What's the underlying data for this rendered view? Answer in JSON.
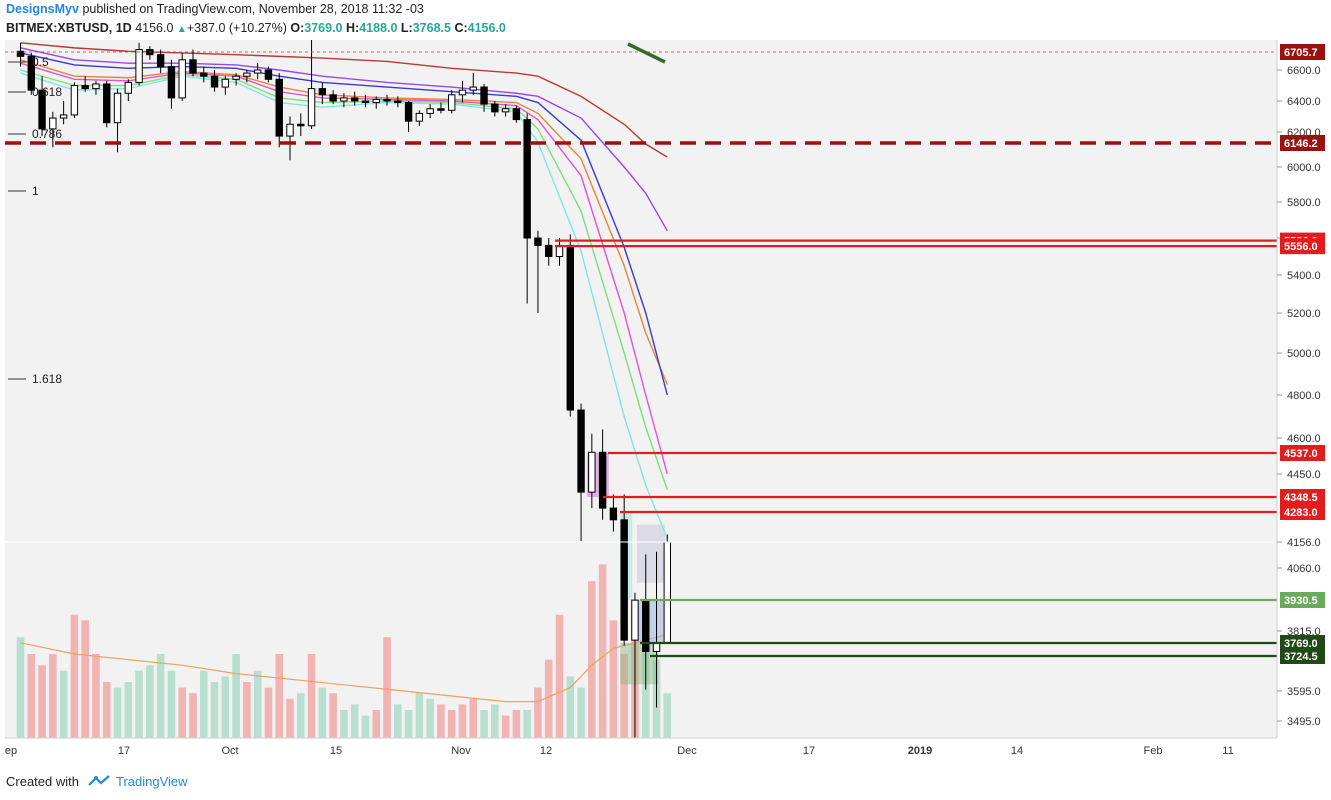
{
  "header": {
    "author": "DesignsMyv",
    "published": "published on TradingView.com, November 28, 2018 11:32 -03",
    "symbol": "BITMEX:XBTUSD, 1D",
    "last": "4156.0",
    "change_arrow": "▲",
    "change": "+387.0 (+10.27%)",
    "open_label": "O:",
    "open": "3769.0",
    "high_label": "H:",
    "high": "4188.0",
    "low_label": "L:",
    "low": "3768.5",
    "close_label": "C:",
    "close": "4156.0"
  },
  "footer": {
    "created_with": "Created with",
    "brand": "TradingView",
    "logo_icon": "tradingview-logo-icon"
  },
  "colors": {
    "bull_candle": "#ffffff",
    "bear_candle": "#000000",
    "vol_up": "#b8dfcf",
    "vol_down": "#f2b3b3",
    "resistance": "#e11d1d",
    "support_light": "#6aaa5b",
    "support_dark": "#1f4a16",
    "dashed_level": "#9b1111",
    "plot_bg": "#f2f2f2"
  },
  "chart_data": {
    "type": "candlestick",
    "title": "",
    "xlabel": "",
    "ylabel": "",
    "ylim": [
      3430,
      6740
    ],
    "grid": false,
    "y_ticks": [
      "6600.0",
      "6400.0",
      "6200.0",
      "6000.0",
      "5800.0",
      "5600.0",
      "5400.0",
      "5200.0",
      "5000.0",
      "4800.0",
      "4600.0",
      "4450.0",
      "4060.0",
      "3815.0",
      "3595.0",
      "3495.0"
    ],
    "x_ticks": [
      "ep",
      "17",
      "Oct",
      "15",
      "Nov",
      "12",
      "Dec",
      "17",
      "2019",
      "14",
      "Feb",
      "11"
    ],
    "price_tags": [
      {
        "value": "6705.7",
        "color": "#9b1111"
      },
      {
        "value": "6146.2",
        "color": "#9b1111"
      },
      {
        "value": "5586.0",
        "color": "#e11d1d"
      },
      {
        "value": "5556.0",
        "color": "#e11d1d"
      },
      {
        "value": "4537.0",
        "color": "#e11d1d"
      },
      {
        "value": "4348.5",
        "color": "#e11d1d"
      },
      {
        "value": "4283.0",
        "color": "#e11d1d"
      },
      {
        "value": "3930.5",
        "color": "#6aaa5b"
      },
      {
        "value": "3769.0",
        "color": "#1f4a16"
      },
      {
        "value": "3724.5",
        "color": "#1f4a16"
      }
    ],
    "last_price": "4156.0",
    "fib_labels": [
      "0.5",
      "0.618",
      "0.786",
      "1",
      "1.618"
    ],
    "horizontal_levels": [
      6705.7,
      6146.2,
      5586.0,
      5556.0,
      4537.0,
      4348.5,
      4283.0,
      3930.5,
      3769.0,
      3724.5
    ],
    "candles": [
      {
        "o": 6710,
        "h": 6760,
        "l": 6620,
        "c": 6680
      },
      {
        "o": 6680,
        "h": 6700,
        "l": 6440,
        "c": 6470
      },
      {
        "o": 6470,
        "h": 6560,
        "l": 6180,
        "c": 6220
      },
      {
        "o": 6220,
        "h": 6330,
        "l": 6120,
        "c": 6290
      },
      {
        "o": 6290,
        "h": 6400,
        "l": 6250,
        "c": 6310
      },
      {
        "o": 6310,
        "h": 6520,
        "l": 6290,
        "c": 6500
      },
      {
        "o": 6500,
        "h": 6560,
        "l": 6460,
        "c": 6480
      },
      {
        "o": 6480,
        "h": 6530,
        "l": 6440,
        "c": 6510
      },
      {
        "o": 6510,
        "h": 6530,
        "l": 6230,
        "c": 6260
      },
      {
        "o": 6260,
        "h": 6480,
        "l": 6090,
        "c": 6450
      },
      {
        "o": 6450,
        "h": 6540,
        "l": 6400,
        "c": 6520
      },
      {
        "o": 6520,
        "h": 6760,
        "l": 6500,
        "c": 6720
      },
      {
        "o": 6720,
        "h": 6740,
        "l": 6660,
        "c": 6690
      },
      {
        "o": 6690,
        "h": 6720,
        "l": 6580,
        "c": 6620
      },
      {
        "o": 6620,
        "h": 6660,
        "l": 6350,
        "c": 6420
      },
      {
        "o": 6420,
        "h": 6700,
        "l": 6400,
        "c": 6660
      },
      {
        "o": 6660,
        "h": 6720,
        "l": 6560,
        "c": 6580
      },
      {
        "o": 6580,
        "h": 6620,
        "l": 6520,
        "c": 6560
      },
      {
        "o": 6560,
        "h": 6600,
        "l": 6460,
        "c": 6490
      },
      {
        "o": 6490,
        "h": 6560,
        "l": 6440,
        "c": 6540
      },
      {
        "o": 6540,
        "h": 6580,
        "l": 6500,
        "c": 6560
      },
      {
        "o": 6560,
        "h": 6600,
        "l": 6520,
        "c": 6580
      },
      {
        "o": 6580,
        "h": 6640,
        "l": 6540,
        "c": 6600
      },
      {
        "o": 6600,
        "h": 6620,
        "l": 6520,
        "c": 6540
      },
      {
        "o": 6540,
        "h": 6580,
        "l": 6120,
        "c": 6180
      },
      {
        "o": 6180,
        "h": 6300,
        "l": 6040,
        "c": 6250
      },
      {
        "o": 6250,
        "h": 6320,
        "l": 6180,
        "c": 6240
      },
      {
        "o": 6240,
        "h": 6780,
        "l": 6220,
        "c": 6480
      },
      {
        "o": 6480,
        "h": 6520,
        "l": 6380,
        "c": 6440
      },
      {
        "o": 6440,
        "h": 6470,
        "l": 6380,
        "c": 6400
      },
      {
        "o": 6400,
        "h": 6450,
        "l": 6360,
        "c": 6420
      },
      {
        "o": 6420,
        "h": 6460,
        "l": 6370,
        "c": 6400
      },
      {
        "o": 6400,
        "h": 6440,
        "l": 6360,
        "c": 6390
      },
      {
        "o": 6390,
        "h": 6430,
        "l": 6350,
        "c": 6410
      },
      {
        "o": 6410,
        "h": 6440,
        "l": 6370,
        "c": 6400
      },
      {
        "o": 6400,
        "h": 6430,
        "l": 6360,
        "c": 6390
      },
      {
        "o": 6390,
        "h": 6400,
        "l": 6200,
        "c": 6270
      },
      {
        "o": 6270,
        "h": 6340,
        "l": 6240,
        "c": 6320
      },
      {
        "o": 6320,
        "h": 6380,
        "l": 6290,
        "c": 6350
      },
      {
        "o": 6350,
        "h": 6390,
        "l": 6320,
        "c": 6340
      },
      {
        "o": 6340,
        "h": 6470,
        "l": 6320,
        "c": 6440
      },
      {
        "o": 6440,
        "h": 6530,
        "l": 6390,
        "c": 6470
      },
      {
        "o": 6470,
        "h": 6580,
        "l": 6440,
        "c": 6490
      },
      {
        "o": 6490,
        "h": 6510,
        "l": 6330,
        "c": 6380
      },
      {
        "o": 6380,
        "h": 6400,
        "l": 6300,
        "c": 6330
      },
      {
        "o": 6330,
        "h": 6380,
        "l": 6300,
        "c": 6350
      },
      {
        "o": 6350,
        "h": 6370,
        "l": 6260,
        "c": 6280
      },
      {
        "o": 6280,
        "h": 6320,
        "l": 5250,
        "c": 5600
      },
      {
        "o": 5600,
        "h": 5640,
        "l": 5200,
        "c": 5560
      },
      {
        "o": 5560,
        "h": 5600,
        "l": 5450,
        "c": 5500
      },
      {
        "o": 5500,
        "h": 5600,
        "l": 5450,
        "c": 5560
      },
      {
        "o": 5560,
        "h": 5620,
        "l": 4700,
        "c": 4730
      },
      {
        "o": 4730,
        "h": 4760,
        "l": 4160,
        "c": 4370
      },
      {
        "o": 4370,
        "h": 4620,
        "l": 4300,
        "c": 4540
      },
      {
        "o": 4540,
        "h": 4640,
        "l": 4250,
        "c": 4300
      },
      {
        "o": 4300,
        "h": 4360,
        "l": 4200,
        "c": 4250
      },
      {
        "o": 4250,
        "h": 4360,
        "l": 3760,
        "c": 3780
      },
      {
        "o": 3780,
        "h": 3960,
        "l": 3420,
        "c": 3930
      },
      {
        "o": 3930,
        "h": 4110,
        "l": 3600,
        "c": 3740
      },
      {
        "o": 3740,
        "h": 4120,
        "l": 3540,
        "c": 3769
      },
      {
        "o": 3769,
        "h": 4188,
        "l": 3768.5,
        "c": 4156
      }
    ],
    "volume": [
      {
        "v": 0.36,
        "up": true
      },
      {
        "v": 0.3,
        "up": false
      },
      {
        "v": 0.26,
        "up": false
      },
      {
        "v": 0.3,
        "up": false
      },
      {
        "v": 0.24,
        "up": true
      },
      {
        "v": 0.44,
        "up": false
      },
      {
        "v": 0.42,
        "up": false
      },
      {
        "v": 0.3,
        "up": false
      },
      {
        "v": 0.2,
        "up": false
      },
      {
        "v": 0.18,
        "up": true
      },
      {
        "v": 0.2,
        "up": true
      },
      {
        "v": 0.24,
        "up": true
      },
      {
        "v": 0.26,
        "up": true
      },
      {
        "v": 0.3,
        "up": true
      },
      {
        "v": 0.24,
        "up": true
      },
      {
        "v": 0.18,
        "up": false
      },
      {
        "v": 0.16,
        "up": false
      },
      {
        "v": 0.24,
        "up": true
      },
      {
        "v": 0.2,
        "up": true
      },
      {
        "v": 0.22,
        "up": true
      },
      {
        "v": 0.3,
        "up": true
      },
      {
        "v": 0.2,
        "up": false
      },
      {
        "v": 0.24,
        "up": true
      },
      {
        "v": 0.18,
        "up": false
      },
      {
        "v": 0.3,
        "up": false
      },
      {
        "v": 0.14,
        "up": false
      },
      {
        "v": 0.16,
        "up": true
      },
      {
        "v": 0.3,
        "up": false
      },
      {
        "v": 0.18,
        "up": true
      },
      {
        "v": 0.16,
        "up": false
      },
      {
        "v": 0.1,
        "up": true
      },
      {
        "v": 0.12,
        "up": true
      },
      {
        "v": 0.08,
        "up": true
      },
      {
        "v": 0.1,
        "up": false
      },
      {
        "v": 0.36,
        "up": false
      },
      {
        "v": 0.12,
        "up": true
      },
      {
        "v": 0.1,
        "up": true
      },
      {
        "v": 0.16,
        "up": true
      },
      {
        "v": 0.14,
        "up": true
      },
      {
        "v": 0.12,
        "up": false
      },
      {
        "v": 0.1,
        "up": false
      },
      {
        "v": 0.12,
        "up": false
      },
      {
        "v": 0.14,
        "up": false
      },
      {
        "v": 0.1,
        "up": true
      },
      {
        "v": 0.12,
        "up": true
      },
      {
        "v": 0.08,
        "up": false
      },
      {
        "v": 0.1,
        "up": false
      },
      {
        "v": 0.1,
        "up": true
      },
      {
        "v": 0.18,
        "up": false
      },
      {
        "v": 0.28,
        "up": false
      },
      {
        "v": 0.44,
        "up": false
      },
      {
        "v": 0.22,
        "up": true
      },
      {
        "v": 0.18,
        "up": true
      },
      {
        "v": 0.56,
        "up": false
      },
      {
        "v": 0.62,
        "up": false
      },
      {
        "v": 0.42,
        "up": false
      },
      {
        "v": 0.3,
        "up": false
      },
      {
        "v": 0.46,
        "up": false
      },
      {
        "v": 0.4,
        "up": true
      },
      {
        "v": 0.28,
        "up": true
      },
      {
        "v": 0.16,
        "up": true
      }
    ],
    "ema_series": [
      {
        "color": "#7fe6e6",
        "values": [
          [
            0,
            6580
          ],
          [
            5,
            6470
          ],
          [
            10,
            6480
          ],
          [
            15,
            6560
          ],
          [
            20,
            6520
          ],
          [
            24,
            6390
          ],
          [
            28,
            6360
          ],
          [
            34,
            6390
          ],
          [
            40,
            6380
          ],
          [
            46,
            6330
          ],
          [
            48,
            6150
          ],
          [
            52,
            5530
          ],
          [
            56,
            4700
          ],
          [
            58,
            4400
          ],
          [
            60,
            4170
          ]
        ]
      },
      {
        "color": "#7ee07a",
        "values": [
          [
            0,
            6600
          ],
          [
            5,
            6500
          ],
          [
            10,
            6500
          ],
          [
            15,
            6570
          ],
          [
            20,
            6540
          ],
          [
            24,
            6420
          ],
          [
            28,
            6390
          ],
          [
            34,
            6400
          ],
          [
            40,
            6390
          ],
          [
            46,
            6350
          ],
          [
            48,
            6220
          ],
          [
            52,
            5750
          ],
          [
            56,
            5000
          ],
          [
            58,
            4650
          ],
          [
            60,
            4380
          ]
        ]
      },
      {
        "color": "#e052d6",
        "values": [
          [
            0,
            6640
          ],
          [
            5,
            6540
          ],
          [
            10,
            6530
          ],
          [
            15,
            6580
          ],
          [
            20,
            6560
          ],
          [
            24,
            6460
          ],
          [
            28,
            6420
          ],
          [
            34,
            6410
          ],
          [
            40,
            6400
          ],
          [
            46,
            6370
          ],
          [
            48,
            6280
          ],
          [
            52,
            5950
          ],
          [
            56,
            5200
          ],
          [
            58,
            4800
          ],
          [
            60,
            4450
          ]
        ]
      },
      {
        "color": "#e8843a",
        "values": [
          [
            0,
            6660
          ],
          [
            5,
            6560
          ],
          [
            10,
            6550
          ],
          [
            15,
            6590
          ],
          [
            20,
            6570
          ],
          [
            24,
            6490
          ],
          [
            28,
            6440
          ],
          [
            34,
            6420
          ],
          [
            40,
            6410
          ],
          [
            46,
            6390
          ],
          [
            48,
            6320
          ],
          [
            52,
            6050
          ],
          [
            56,
            5450
          ],
          [
            58,
            5100
          ],
          [
            60,
            4850
          ]
        ]
      },
      {
        "color": "#3a3ad0",
        "values": [
          [
            0,
            6700
          ],
          [
            5,
            6630
          ],
          [
            10,
            6610
          ],
          [
            15,
            6620
          ],
          [
            20,
            6610
          ],
          [
            24,
            6560
          ],
          [
            28,
            6520
          ],
          [
            34,
            6490
          ],
          [
            40,
            6460
          ],
          [
            46,
            6430
          ],
          [
            48,
            6390
          ],
          [
            52,
            6160
          ],
          [
            56,
            5550
          ],
          [
            58,
            5200
          ],
          [
            60,
            4800
          ]
        ]
      },
      {
        "color": "#9848e8",
        "values": [
          [
            0,
            6730
          ],
          [
            5,
            6660
          ],
          [
            10,
            6640
          ],
          [
            15,
            6640
          ],
          [
            20,
            6630
          ],
          [
            24,
            6600
          ],
          [
            28,
            6560
          ],
          [
            34,
            6520
          ],
          [
            40,
            6490
          ],
          [
            46,
            6450
          ],
          [
            48,
            6430
          ],
          [
            52,
            6290
          ],
          [
            56,
            6000
          ],
          [
            58,
            5850
          ],
          [
            60,
            5640
          ]
        ]
      },
      {
        "color": "#b83a34",
        "values": [
          [
            0,
            6760
          ],
          [
            5,
            6730
          ],
          [
            10,
            6710
          ],
          [
            15,
            6700
          ],
          [
            20,
            6690
          ],
          [
            24,
            6680
          ],
          [
            28,
            6670
          ],
          [
            34,
            6650
          ],
          [
            40,
            6610
          ],
          [
            46,
            6580
          ],
          [
            48,
            6560
          ],
          [
            52,
            6430
          ],
          [
            56,
            6250
          ],
          [
            58,
            6140
          ],
          [
            60,
            6060
          ]
        ]
      }
    ],
    "volume_ma": [
      [
        0,
        0.34
      ],
      [
        5,
        0.3
      ],
      [
        10,
        0.28
      ],
      [
        15,
        0.26
      ],
      [
        20,
        0.23
      ],
      [
        25,
        0.21
      ],
      [
        30,
        0.19
      ],
      [
        35,
        0.17
      ],
      [
        40,
        0.15
      ],
      [
        45,
        0.13
      ],
      [
        48,
        0.13
      ],
      [
        51,
        0.18
      ],
      [
        53,
        0.26
      ],
      [
        55,
        0.32
      ],
      [
        57,
        0.34
      ],
      [
        59,
        0.36
      ],
      [
        60,
        0.37
      ]
    ]
  }
}
